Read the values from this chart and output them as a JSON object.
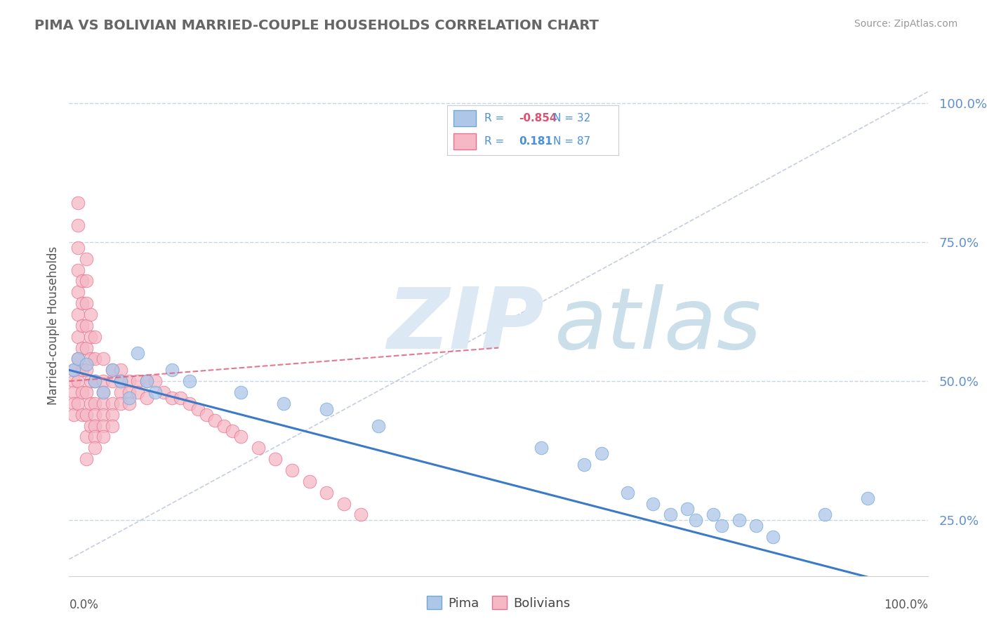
{
  "title": "PIMA VS BOLIVIAN MARRIED-COUPLE HOUSEHOLDS CORRELATION CHART",
  "source": "Source: ZipAtlas.com",
  "ylabel": "Married-couple Households",
  "legend_pima_R": "-0.854",
  "legend_pima_N": "32",
  "legend_bolivians_R": "0.181",
  "legend_bolivians_N": "87",
  "pima_color": "#aec6e8",
  "bolivians_color": "#f5b8c4",
  "pima_edge_color": "#6fa8d8",
  "bolivians_edge_color": "#e87090",
  "pima_line_color": "#3a7ac8",
  "bolivians_line_color": "#e06080",
  "watermark_zip_color": "#dce8f0",
  "watermark_atlas_color": "#c8dcea",
  "background_color": "#ffffff",
  "grid_color": "#c8d4e8",
  "ytick_color": "#6090d0",
  "yticks": [
    0.25,
    0.5,
    0.75,
    1.0
  ],
  "ytick_labels": [
    "25.0%",
    "50.0%",
    "75.0%",
    "100.0%"
  ],
  "xlim": [
    0.0,
    1.0
  ],
  "ylim": [
    0.15,
    1.05
  ],
  "pima_x": [
    0.005,
    0.01,
    0.02,
    0.03,
    0.04,
    0.05,
    0.06,
    0.07,
    0.08,
    0.09,
    0.1,
    0.12,
    0.14,
    0.2,
    0.25,
    0.3,
    0.36,
    0.55,
    0.6,
    0.62,
    0.65,
    0.68,
    0.7,
    0.72,
    0.73,
    0.75,
    0.76,
    0.78,
    0.8,
    0.82,
    0.88,
    0.93
  ],
  "pima_y": [
    0.52,
    0.54,
    0.53,
    0.5,
    0.48,
    0.52,
    0.5,
    0.47,
    0.55,
    0.5,
    0.48,
    0.52,
    0.5,
    0.48,
    0.46,
    0.45,
    0.42,
    0.38,
    0.35,
    0.37,
    0.3,
    0.28,
    0.26,
    0.27,
    0.25,
    0.26,
    0.24,
    0.25,
    0.24,
    0.22,
    0.26,
    0.29
  ],
  "bolivians_x": [
    0.005,
    0.005,
    0.005,
    0.005,
    0.005,
    0.01,
    0.01,
    0.01,
    0.01,
    0.01,
    0.01,
    0.01,
    0.01,
    0.01,
    0.01,
    0.015,
    0.015,
    0.015,
    0.015,
    0.015,
    0.015,
    0.015,
    0.02,
    0.02,
    0.02,
    0.02,
    0.02,
    0.02,
    0.02,
    0.02,
    0.02,
    0.02,
    0.025,
    0.025,
    0.025,
    0.025,
    0.025,
    0.025,
    0.03,
    0.03,
    0.03,
    0.03,
    0.03,
    0.03,
    0.03,
    0.03,
    0.04,
    0.04,
    0.04,
    0.04,
    0.04,
    0.04,
    0.04,
    0.05,
    0.05,
    0.05,
    0.05,
    0.05,
    0.06,
    0.06,
    0.06,
    0.06,
    0.07,
    0.07,
    0.07,
    0.08,
    0.08,
    0.09,
    0.09,
    0.1,
    0.11,
    0.12,
    0.13,
    0.14,
    0.15,
    0.16,
    0.17,
    0.18,
    0.19,
    0.2,
    0.22,
    0.24,
    0.26,
    0.28,
    0.3,
    0.32,
    0.34
  ],
  "bolivians_y": [
    0.5,
    0.52,
    0.48,
    0.46,
    0.44,
    0.82,
    0.78,
    0.74,
    0.7,
    0.66,
    0.62,
    0.58,
    0.54,
    0.5,
    0.46,
    0.68,
    0.64,
    0.6,
    0.56,
    0.52,
    0.48,
    0.44,
    0.72,
    0.68,
    0.64,
    0.6,
    0.56,
    0.52,
    0.48,
    0.44,
    0.4,
    0.36,
    0.62,
    0.58,
    0.54,
    0.5,
    0.46,
    0.42,
    0.58,
    0.54,
    0.5,
    0.46,
    0.44,
    0.42,
    0.4,
    0.38,
    0.54,
    0.5,
    0.48,
    0.46,
    0.44,
    0.42,
    0.4,
    0.52,
    0.5,
    0.46,
    0.44,
    0.42,
    0.52,
    0.5,
    0.48,
    0.46,
    0.5,
    0.48,
    0.46,
    0.5,
    0.48,
    0.5,
    0.47,
    0.5,
    0.48,
    0.47,
    0.47,
    0.46,
    0.45,
    0.44,
    0.43,
    0.42,
    0.41,
    0.4,
    0.38,
    0.36,
    0.34,
    0.32,
    0.3,
    0.28,
    0.26
  ]
}
